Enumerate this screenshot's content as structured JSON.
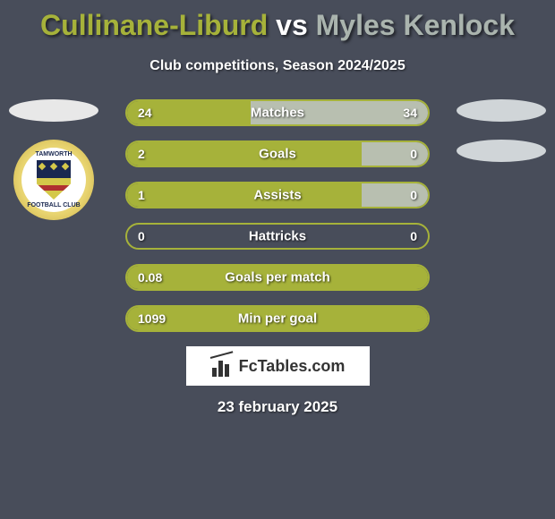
{
  "colors": {
    "background": "#484d5a",
    "player1_accent": "#a6b23a",
    "player2_accent": "#b8bfb0",
    "title_p1": "#a6b23a",
    "title_vs": "#ffffff",
    "title_p2": "#aab4ae",
    "text_white": "#ffffff",
    "bar_border": "#a6b23a",
    "footer_bg": "#ffffff",
    "footer_text": "#333333"
  },
  "title": {
    "player1": "Cullinane-Liburd",
    "vs": "vs",
    "player2": "Myles Kenlock",
    "fontsize": 32
  },
  "subtitle": "Club competitions, Season 2024/2025",
  "crest": {
    "top_text": "TAMWORTH",
    "bottom_text": "FOOTBALL CLUB"
  },
  "bars": [
    {
      "label": "Matches",
      "left_val": "24",
      "right_val": "34",
      "left_pct": 41,
      "right_pct": 59
    },
    {
      "label": "Goals",
      "left_val": "2",
      "right_val": "0",
      "left_pct": 78,
      "right_pct": 22
    },
    {
      "label": "Assists",
      "left_val": "1",
      "right_val": "0",
      "left_pct": 78,
      "right_pct": 22
    },
    {
      "label": "Hattricks",
      "left_val": "0",
      "right_val": "0",
      "left_pct": 0,
      "right_pct": 0
    },
    {
      "label": "Goals per match",
      "left_val": "0.08",
      "right_val": "",
      "left_pct": 100,
      "right_pct": 0
    },
    {
      "label": "Min per goal",
      "left_val": "1099",
      "right_val": "",
      "left_pct": 100,
      "right_pct": 0
    }
  ],
  "footer_brand": "FcTables.com",
  "date": "23 february 2025"
}
